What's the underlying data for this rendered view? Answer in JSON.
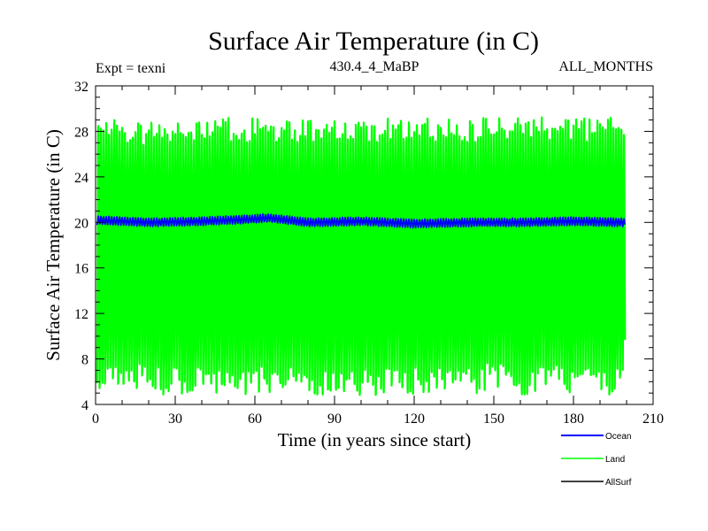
{
  "chart_data": {
    "type": "line",
    "title": "Surface Air Temperature (in C)",
    "subtitle_left": "Expt = texni",
    "subtitle_center": "430.4_4_MaBP",
    "subtitle_right": "ALL_MONTHS",
    "xlabel": "Time (in years since start)",
    "ylabel": "Surface Air Temperature (in C)",
    "xlim": [
      0,
      210
    ],
    "ylim": [
      4,
      32
    ],
    "xticks": [
      0,
      30,
      60,
      90,
      120,
      150,
      180,
      210
    ],
    "yticks": [
      4,
      8,
      12,
      16,
      20,
      24,
      28,
      32
    ],
    "x_minor_step": 10,
    "y_minor_step": 1,
    "x_range": [
      0.5,
      199.5
    ],
    "legend_position": "bottom-right",
    "series": [
      {
        "name": "Land",
        "color": "#00ff00",
        "kind": "seasonal-cycle",
        "period_years": 1,
        "mean": 16.8,
        "summer_peak_range": [
          27.3,
          29.4
        ],
        "winter_trough_range": [
          4.6,
          7.2
        ]
      },
      {
        "name": "Ocean",
        "color": "#0000ff",
        "kind": "seasonal-cycle",
        "period_years": 1,
        "values_x": [
          0.5,
          20,
          40,
          60,
          65,
          80,
          100,
          120,
          140,
          160,
          180,
          199.5
        ],
        "values_y": [
          20.2,
          20.0,
          20.1,
          20.3,
          20.4,
          20.0,
          20.1,
          19.9,
          20.0,
          20.0,
          20.1,
          20.0
        ],
        "amplitude": 0.35
      },
      {
        "name": "AllSurf",
        "color": "#000000",
        "kind": "hidden-under-land",
        "values_x": [],
        "values_y": []
      }
    ]
  }
}
